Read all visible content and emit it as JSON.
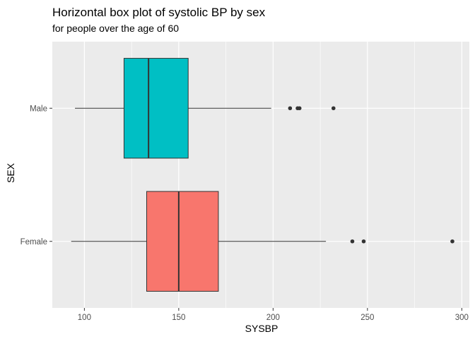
{
  "chart_data": {
    "type": "boxplot",
    "orientation": "horizontal",
    "title": "Horizontal box plot of systolic BP by sex",
    "subtitle": "for people over the age of 60",
    "xlabel": "SYSBP",
    "ylabel": "SEX",
    "xlim": [
      83,
      304
    ],
    "x_ticks": [
      100,
      150,
      200,
      250,
      300
    ],
    "x_tick_labels": [
      "100",
      "150",
      "200",
      "250",
      "300"
    ],
    "categories": [
      "Female",
      "Male"
    ],
    "grid": true,
    "legend": "none",
    "background_color": "#ebebeb",
    "grid_color": "#ffffff",
    "series": [
      {
        "category": "Female",
        "color": "#f8766d",
        "whisker_low": 93,
        "q1": 133,
        "median": 150,
        "q3": 171,
        "whisker_high": 228,
        "outliers": [
          242,
          248,
          295
        ]
      },
      {
        "category": "Male",
        "color": "#00bfc4",
        "whisker_low": 95,
        "q1": 121,
        "median": 134,
        "q3": 155,
        "whisker_high": 199,
        "outliers": [
          209,
          213,
          214,
          232
        ]
      }
    ]
  }
}
